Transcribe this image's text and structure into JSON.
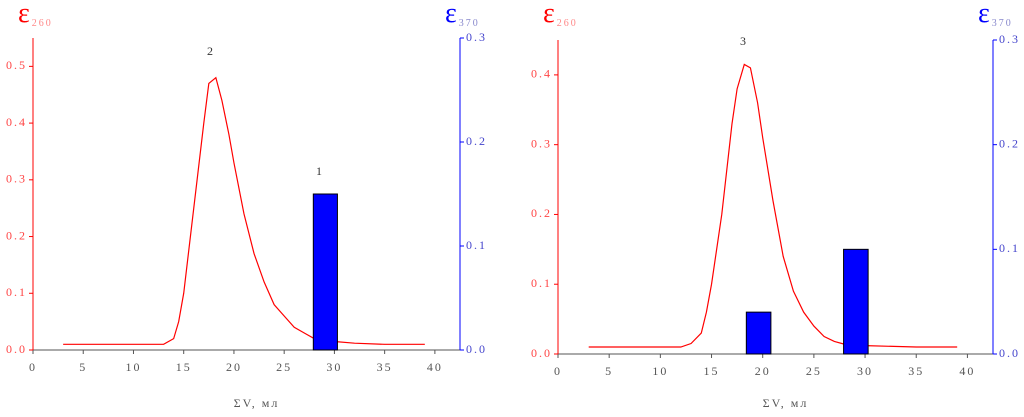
{
  "chart_data": [
    {
      "type": "line",
      "xlabel": "ΣV, мл",
      "ylabel": "ε",
      "ylabel_sub": "260",
      "y2label": "ε",
      "y2label_sub": "370",
      "xlim": [
        0,
        42.5
      ],
      "xticks": [
        0,
        5,
        10,
        15,
        20,
        25,
        30,
        35,
        40
      ],
      "ylim": [
        0,
        0.55
      ],
      "yticks": [
        {
          "value": 0,
          "label": "0.0"
        },
        0.1,
        0.2,
        0.3,
        0.4,
        0.5
      ],
      "y2lim": [
        0,
        0.3
      ],
      "y2ticks": [
        {
          "value": 0,
          "label": "0.0"
        },
        0.1,
        0.2,
        0.3
      ],
      "annotations": [
        "2",
        "1"
      ],
      "series": [
        {
          "type": "line",
          "color": "#ff0000",
          "x": [
            3,
            13,
            14,
            14.5,
            15,
            16,
            17,
            17.5,
            18.2,
            18.8,
            19.5,
            20,
            21,
            22,
            23,
            24,
            25,
            26,
            27,
            28,
            30,
            32,
            35,
            39
          ],
          "values": [
            0.01,
            0.01,
            0.02,
            0.05,
            0.1,
            0.25,
            0.4,
            0.47,
            0.48,
            0.44,
            0.38,
            0.33,
            0.24,
            0.17,
            0.12,
            0.08,
            0.06,
            0.04,
            0.03,
            0.02,
            0.015,
            0.012,
            0.01,
            0.01
          ]
        },
        {
          "type": "bar",
          "axis": "y2",
          "color": "#0000ff",
          "x": [
            29.1
          ],
          "values": [
            0.15
          ]
        }
      ]
    },
    {
      "type": "line",
      "xlabel": "ΣV, мл",
      "ylabel": "ε",
      "ylabel_sub": "260",
      "y2label": "ε",
      "y2label_sub": "370",
      "xlim": [
        0,
        42.5
      ],
      "xticks": [
        0,
        5,
        10,
        15,
        20,
        25,
        30,
        35,
        40
      ],
      "ylim": [
        0,
        0.45
      ],
      "yticks": [
        {
          "value": 0,
          "label": "0.0"
        },
        0.1,
        0.2,
        0.3,
        0.4
      ],
      "y2lim": [
        0,
        0.3
      ],
      "y2ticks": [
        {
          "value": 0,
          "label": "0.0"
        },
        0.1,
        0.2,
        0.3
      ],
      "annotations": [
        "3"
      ],
      "series": [
        {
          "type": "line",
          "color": "#ff0000",
          "x": [
            3,
            12,
            13,
            14,
            14.5,
            15,
            16,
            17,
            17.5,
            18.2,
            18.8,
            19.5,
            20,
            21,
            22,
            23,
            24,
            25,
            26,
            27,
            28,
            30,
            35,
            39
          ],
          "values": [
            0.01,
            0.01,
            0.015,
            0.03,
            0.06,
            0.1,
            0.2,
            0.33,
            0.38,
            0.415,
            0.41,
            0.36,
            0.31,
            0.22,
            0.14,
            0.09,
            0.06,
            0.04,
            0.025,
            0.018,
            0.014,
            0.012,
            0.01,
            0.01
          ]
        },
        {
          "type": "bar",
          "axis": "y2",
          "color": "#0000ff",
          "x": [
            19.6,
            29.1
          ],
          "values": [
            0.04,
            0.1
          ]
        }
      ]
    }
  ]
}
